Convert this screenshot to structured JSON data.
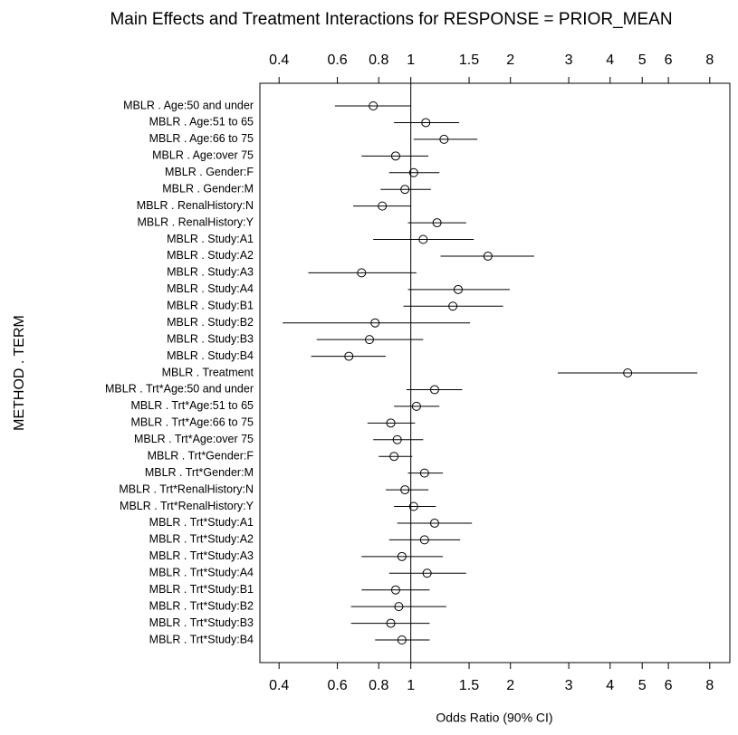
{
  "chart_data": {
    "type": "forest",
    "title": "Main Effects and Treatment Interactions for RESPONSE = PRIOR_MEAN",
    "xlabel": "Odds Ratio (90% CI)",
    "ylabel": "METHOD . TERM",
    "log_x": true,
    "reference_line": 1,
    "color": "#000000",
    "xlim": [
      0.35,
      9.2
    ],
    "xticks": [
      0.4,
      0.6,
      0.8,
      1,
      1.5,
      2,
      3,
      4,
      5,
      6,
      8
    ],
    "categories": [
      "MBLR . Age:50 and under",
      "MBLR . Age:51 to 65",
      "MBLR . Age:66 to 75",
      "MBLR . Age:over 75",
      "MBLR . Gender:F",
      "MBLR . Gender:M",
      "MBLR . RenalHistory:N",
      "MBLR . RenalHistory:Y",
      "MBLR . Study:A1",
      "MBLR . Study:A2",
      "MBLR . Study:A3",
      "MBLR . Study:A4",
      "MBLR . Study:B1",
      "MBLR . Study:B2",
      "MBLR . Study:B3",
      "MBLR . Study:B4",
      "MBLR . Treatment",
      "MBLR . Trt*Age:50 and under",
      "MBLR . Trt*Age:51 to 65",
      "MBLR . Trt*Age:66 to 75",
      "MBLR . Trt*Age:over 75",
      "MBLR . Trt*Gender:F",
      "MBLR . Trt*Gender:M",
      "MBLR . Trt*RenalHistory:N",
      "MBLR . Trt*RenalHistory:Y",
      "MBLR . Trt*Study:A1",
      "MBLR . Trt*Study:A2",
      "MBLR . Trt*Study:A3",
      "MBLR . Trt*Study:A4",
      "MBLR . Trt*Study:B1",
      "MBLR . Trt*Study:B2",
      "MBLR . Trt*Study:B3",
      "MBLR . Trt*Study:B4"
    ],
    "values": [
      0.77,
      1.11,
      1.26,
      0.9,
      1.02,
      0.96,
      0.82,
      1.2,
      1.09,
      1.71,
      0.71,
      1.39,
      1.34,
      0.78,
      0.75,
      0.65,
      4.52,
      1.18,
      1.04,
      0.87,
      0.91,
      0.89,
      1.1,
      0.96,
      1.02,
      1.18,
      1.1,
      0.94,
      1.12,
      0.9,
      0.92,
      0.87,
      0.94
    ],
    "lower": [
      0.59,
      0.89,
      1.02,
      0.71,
      0.86,
      0.81,
      0.67,
      0.98,
      0.77,
      1.23,
      0.49,
      0.98,
      0.95,
      0.41,
      0.52,
      0.5,
      2.78,
      0.97,
      0.89,
      0.74,
      0.77,
      0.8,
      0.98,
      0.84,
      0.89,
      0.91,
      0.86,
      0.71,
      0.86,
      0.71,
      0.66,
      0.66,
      0.78
    ],
    "upper": [
      1.0,
      1.4,
      1.59,
      1.13,
      1.22,
      1.15,
      1.0,
      1.47,
      1.55,
      2.36,
      1.04,
      1.99,
      1.9,
      1.51,
      1.09,
      0.84,
      7.34,
      1.43,
      1.22,
      1.03,
      1.09,
      1.01,
      1.25,
      1.13,
      1.19,
      1.53,
      1.41,
      1.25,
      1.47,
      1.14,
      1.28,
      1.14,
      1.14
    ]
  }
}
